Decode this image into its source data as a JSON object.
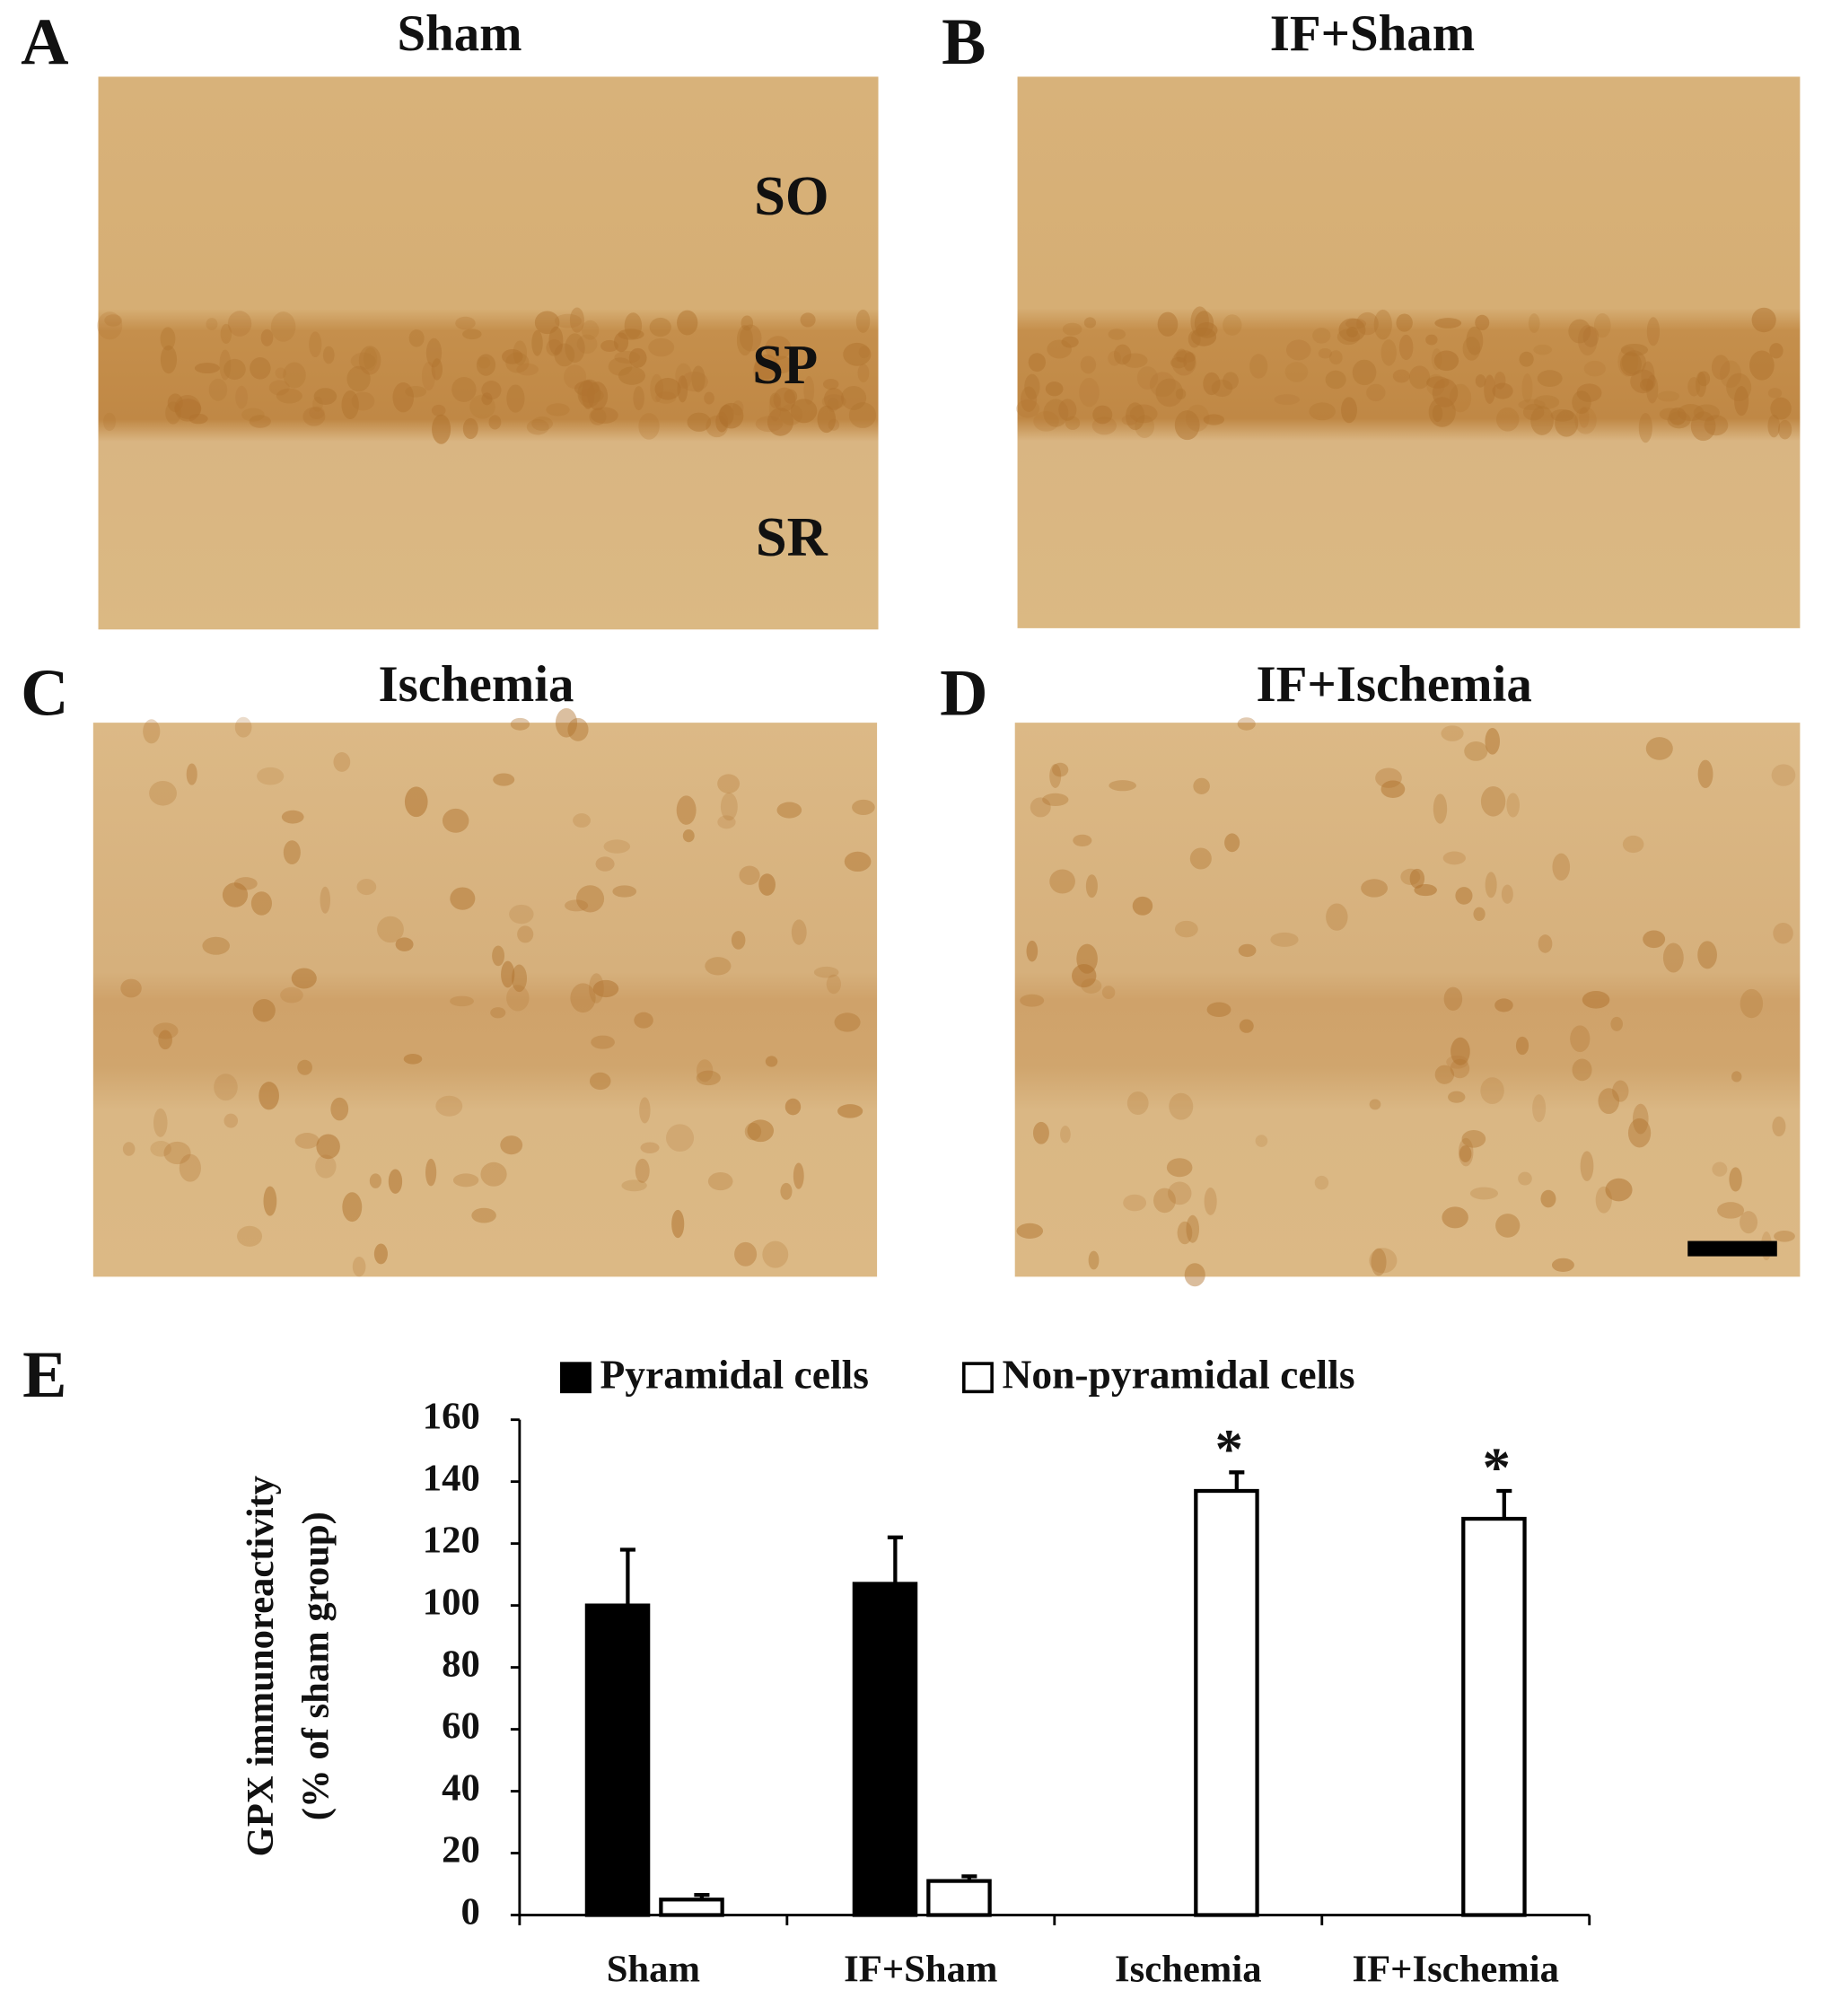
{
  "panels": [
    {
      "label": "A",
      "title": "Sham",
      "layers": [
        "SO",
        "SP",
        "SR"
      ]
    },
    {
      "label": "B",
      "title": "IF+Sham"
    },
    {
      "label": "C",
      "title": "Ischemia"
    },
    {
      "label": "D",
      "title": "IF+Ischemia"
    }
  ],
  "chart_data": {
    "type": "bar",
    "label": "E",
    "ylabel": [
      "GPX immunoreactivity",
      "(% of sham group)"
    ],
    "categories": [
      "Sham",
      "IF+Sham",
      "Ischemia",
      "IF+Ischemia"
    ],
    "series": [
      {
        "name": "Pyramidal cells",
        "color": "#000000",
        "values": [
          100,
          107,
          null,
          null
        ],
        "errors": [
          18,
          15,
          null,
          null
        ]
      },
      {
        "name": "Non-pyramidal cells",
        "color": "#ffffff",
        "values": [
          5,
          11,
          137,
          128
        ],
        "errors": [
          1.5,
          1.5,
          6,
          9
        ],
        "significance": [
          null,
          null,
          "*",
          "*"
        ]
      }
    ],
    "ylim": [
      0,
      160
    ],
    "yticks": [
      0,
      20,
      40,
      60,
      80,
      100,
      120,
      140,
      160
    ],
    "grid": false
  }
}
